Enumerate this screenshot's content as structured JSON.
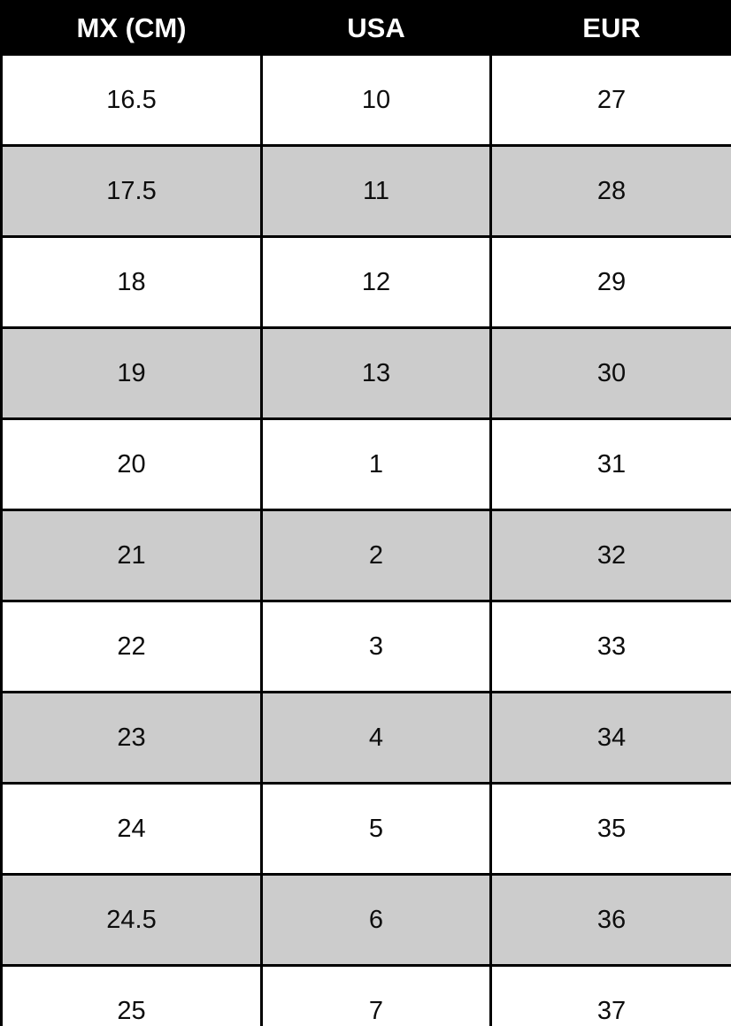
{
  "chart_data": {
    "type": "table",
    "columns": [
      "MX (CM)",
      "USA",
      "EUR"
    ],
    "rows": [
      [
        "16.5",
        "10",
        "27"
      ],
      [
        "17.5",
        "11",
        "28"
      ],
      [
        "18",
        "12",
        "29"
      ],
      [
        "19",
        "13",
        "30"
      ],
      [
        "20",
        "1",
        "31"
      ],
      [
        "21",
        "2",
        "32"
      ],
      [
        "22",
        "3",
        "33"
      ],
      [
        "23",
        "4",
        "34"
      ],
      [
        "24",
        "5",
        "35"
      ],
      [
        "24.5",
        "6",
        "36"
      ],
      [
        "25",
        "7",
        "37"
      ]
    ],
    "layout": {
      "header_bg": "#000000",
      "header_text_color": "#ffffff",
      "row_bg": "#ffffff",
      "row_alt_bg": "#cccccc",
      "border_color": "#000000",
      "stripe_pattern": "odd-rows-gray"
    }
  }
}
